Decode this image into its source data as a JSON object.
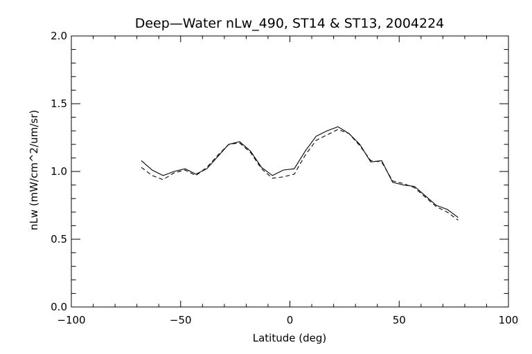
{
  "chart_data": {
    "type": "line",
    "title": "Deep—Water nLw_490, ST14 & ST13, 2004224",
    "xlabel": "Latitude (deg)",
    "ylabel": "nLw (mW/cm^2/um/sr)",
    "xlim": [
      -100,
      100
    ],
    "ylim": [
      0.0,
      2.0
    ],
    "xticks": [
      -100,
      -50,
      0,
      50,
      100
    ],
    "xtick_labels": [
      "−100",
      "−50",
      "0",
      "50",
      "100"
    ],
    "yticks": [
      0.0,
      0.5,
      1.0,
      1.5,
      2.0
    ],
    "ytick_labels": [
      "0.0",
      "0.5",
      "1.0",
      "1.5",
      "2.0"
    ],
    "x_minor_step": 10,
    "y_minor_step": 0.1,
    "grid": false,
    "series": [
      {
        "style": "solid",
        "color": "#000000",
        "x": [
          -68,
          -63,
          -58,
          -53,
          -48,
          -43,
          -38,
          -33,
          -28,
          -23,
          -18,
          -13,
          -8,
          -3,
          2,
          7,
          12,
          17,
          22,
          27,
          32,
          37,
          42,
          47,
          52,
          57,
          62,
          67,
          72,
          77
        ],
        "y": [
          1.08,
          1.01,
          0.97,
          1.0,
          1.02,
          0.98,
          1.02,
          1.11,
          1.2,
          1.22,
          1.15,
          1.03,
          0.97,
          1.01,
          1.02,
          1.15,
          1.26,
          1.3,
          1.33,
          1.28,
          1.2,
          1.07,
          1.08,
          0.92,
          0.9,
          0.89,
          0.82,
          0.75,
          0.72,
          0.66
        ]
      },
      {
        "style": "dashed",
        "color": "#000000",
        "x": [
          -68,
          -63,
          -58,
          -53,
          -48,
          -43,
          -38,
          -33,
          -28,
          -23,
          -18,
          -13,
          -8,
          -3,
          2,
          7,
          12,
          17,
          22,
          27,
          32,
          37,
          42,
          47,
          52,
          57,
          62,
          67,
          72,
          77
        ],
        "y": [
          1.03,
          0.97,
          0.94,
          0.99,
          1.01,
          0.97,
          1.03,
          1.12,
          1.2,
          1.21,
          1.14,
          1.02,
          0.95,
          0.96,
          0.98,
          1.12,
          1.23,
          1.27,
          1.31,
          1.28,
          1.19,
          1.08,
          1.07,
          0.93,
          0.91,
          0.88,
          0.81,
          0.74,
          0.7,
          0.64
        ]
      }
    ]
  }
}
